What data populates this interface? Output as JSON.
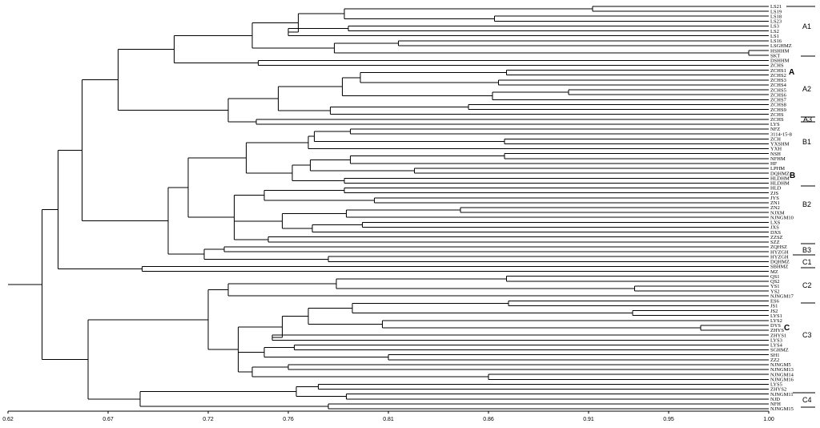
{
  "figure": {
    "axis": {
      "min": 0.62,
      "max": 1.0,
      "ticks": [
        "0.62",
        "0.67",
        "0.72",
        "0.76",
        "0.81",
        "0.86",
        "0.91",
        "0.95",
        "1.00"
      ]
    },
    "leaves": [
      "LS21",
      "LS19",
      "LS18",
      "LS23",
      "LS3",
      "LS2",
      "LS1",
      "LS16",
      "LSGHMZ",
      "HSHHM",
      "SKT",
      "DSHHM",
      "ZCHS1",
      "ZCHS2",
      "ZCHS3",
      "ZCHS4",
      "ZCHS5",
      "ZCHS6",
      "ZCHS7",
      "ZCHS8",
      "ZCHS9",
      "ZCHS",
      "ZCHS",
      "LYS",
      "NFZ",
      "3114-15-8",
      "ZCH",
      "YXSHM",
      "YXH",
      "NSH",
      "NFHM",
      "HF",
      "LPHM",
      "DQHMZ",
      "HLDHM",
      "HLDHM",
      "HLD",
      "ZJS",
      "JYS",
      "ZN1",
      "ZN2",
      "NJXM",
      "NJNGM10",
      "LXS",
      "JXS",
      "DXS",
      "ZZSZ",
      "SZZ",
      "ZQHSZ",
      "HYZGH",
      "HYZGH",
      "DQHMZ",
      "SBHMZ",
      "MZ",
      "QS1",
      "QS2",
      "YS1",
      "YS2",
      "NJNGM17",
      "ES6",
      "JS1",
      "JS2",
      "LYS1",
      "LYS2",
      "DYS",
      "ZHYS",
      "ZHYS1",
      "LYS3",
      "LYS4",
      "SGHMZ",
      "SH1",
      "ZZ2",
      "NJNGM5",
      "NJNGM13",
      "NJNGM14",
      "NJNGM16",
      "LYS5",
      "ZHYS2",
      "NJNGM11",
      "NJD",
      "NFH",
      "NJNGM15"
    ],
    "groups": [
      {
        "label": "A1"
      },
      {
        "label": "A2"
      },
      {
        "label": "A3"
      },
      {
        "label": "A"
      },
      {
        "label": "B1"
      },
      {
        "label": "B2"
      },
      {
        "label": "B3"
      },
      {
        "label": "B"
      },
      {
        "label": "C1"
      },
      {
        "label": "C2"
      },
      {
        "label": "C3"
      },
      {
        "label": "C4"
      },
      {
        "label": "C"
      }
    ]
  },
  "tree_data": {
    "type": "dendrogram",
    "similarity_axis_range": [
      0.62,
      1.0
    ],
    "tree": [
      0.627,
      [
        0.637,
        [
          0.645,
          [
            0.657,
            [
              0.675,
              [
                0.703,
                [
                  0.742,
                  [
                    0.765,
                    [
                      0.788,
                      [
                        0.912,
                        "LS21",
                        "LS19"
                      ],
                      [
                        0.863,
                        "LS18",
                        "LS23"
                      ]
                    ],
                    [
                      0.76,
                      [
                        0.79,
                        "LS3",
                        "LS2"
                      ],
                      "LS1"
                    ]
                  ],
                  [
                    0.783,
                    [
                      0.815,
                      "LS16",
                      "LSGHMZ"
                    ],
                    [
                      0.99,
                      "HSHHM",
                      "SKT"
                    ]
                  ]
                ],
                [
                  0.745,
                  "DSHHM",
                  "ZCHS"
                ]
              ],
              [
                0.73,
                [
                  0.755,
                  [
                    0.787,
                    [
                      0.796,
                      [
                        0.869,
                        "ZCHS1",
                        "ZCHS2"
                      ],
                      [
                        0.865,
                        "ZCHS3",
                        "ZCHS4"
                      ]
                    ],
                    [
                      0.862,
                      [
                        0.9,
                        "ZCHS5",
                        "ZCHS6"
                      ],
                      "ZCHS7"
                    ]
                  ],
                  [
                    0.781,
                    [
                      0.85,
                      "ZCHS8",
                      "ZCHS9"
                    ],
                    "ZCHS"
                  ]
                ],
                [
                  0.744,
                  "ZCHS",
                  "LYS"
                ]
              ]
            ],
            [
              0.7,
              [
                0.71,
                [
                  0.739,
                  [
                    0.77,
                    [
                      0.773,
                      [
                        0.791,
                        "NFZ",
                        "3114-15-8"
                      ],
                      [
                        0.868,
                        "ZCH",
                        "YXSHM"
                      ]
                    ],
                    "YXH"
                  ],
                  [
                    0.762,
                    [
                      0.771,
                      [
                        0.791,
                        [
                          0.868,
                          "NSH",
                          "NFHM"
                        ],
                        "HF"
                      ],
                      [
                        0.823,
                        "LPHM",
                        "DQHMZ"
                      ]
                    ],
                    [
                      0.788,
                      "HLDHM",
                      "HLDHM"
                    ]
                  ]
                ],
                [
                  0.733,
                  [
                    0.748,
                    [
                      0.788,
                      "HLD",
                      "ZJS"
                    ],
                    [
                      0.803,
                      "JYS",
                      "ZN1"
                    ]
                  ],
                  [
                    0.757,
                    [
                      0.789,
                      [
                        0.846,
                        "ZN2",
                        "NJXM"
                      ],
                      "NJNGM10"
                    ],
                    [
                      0.772,
                      [
                        0.797,
                        "LXS",
                        "JXS"
                      ],
                      "DXS"
                    ]
                  ],
                  [
                    0.75,
                    "ZZSZ",
                    "SZZ"
                  ]
                ]
              ],
              [
                0.718,
                [
                  0.728,
                  "ZQHSZ",
                  "HYZGH"
                ],
                [
                  0.78,
                  "HYZGH",
                  "DQHMZ"
                ]
              ]
            ]
          ],
          [
            0.687,
            "SBHMZ",
            "MZ"
          ]
        ],
        [
          0.66,
          [
            0.72,
            [
              0.73,
              [
                0.784,
                [
                  0.869,
                  "QS1",
                  "QS2"
                ],
                [
                  0.933,
                  "YS1",
                  "YS2"
                ]
              ],
              "NJNGM17"
            ],
            [
              0.735,
              [
                0.757,
                [
                  0.77,
                  [
                    0.792,
                    [
                      0.87,
                      "ES6",
                      "JS1"
                    ],
                    [
                      0.932,
                      "JS2",
                      "LYS1"
                    ]
                  ],
                  [
                    0.807,
                    "LYS2",
                    [
                      0.966,
                      "DYS",
                      "ZHYS"
                    ]
                  ]
                ],
                [
                  0.752,
                  "ZHYS1",
                  "LYS3"
                ]
              ],
              [
                0.748,
                [
                  0.763,
                  "LYS4",
                  "SGHMZ"
                ],
                [
                  0.81,
                  "SH1",
                  "ZZ2"
                ]
              ],
              [
                0.742,
                [
                  0.76,
                  "NJNGM5",
                  "NJNGM13"
                ],
                [
                  0.86,
                  "NJNGM14",
                  "NJNGM16"
                ]
              ]
            ]
          ],
          [
            0.686,
            [
              0.764,
              [
                0.775,
                "LYS5",
                "ZHYS2"
              ],
              [
                0.789,
                "NJNGM11",
                "NJD"
              ]
            ],
            [
              0.78,
              "NFH",
              "NJNGM15"
            ]
          ]
        ]
      ]
    ]
  }
}
